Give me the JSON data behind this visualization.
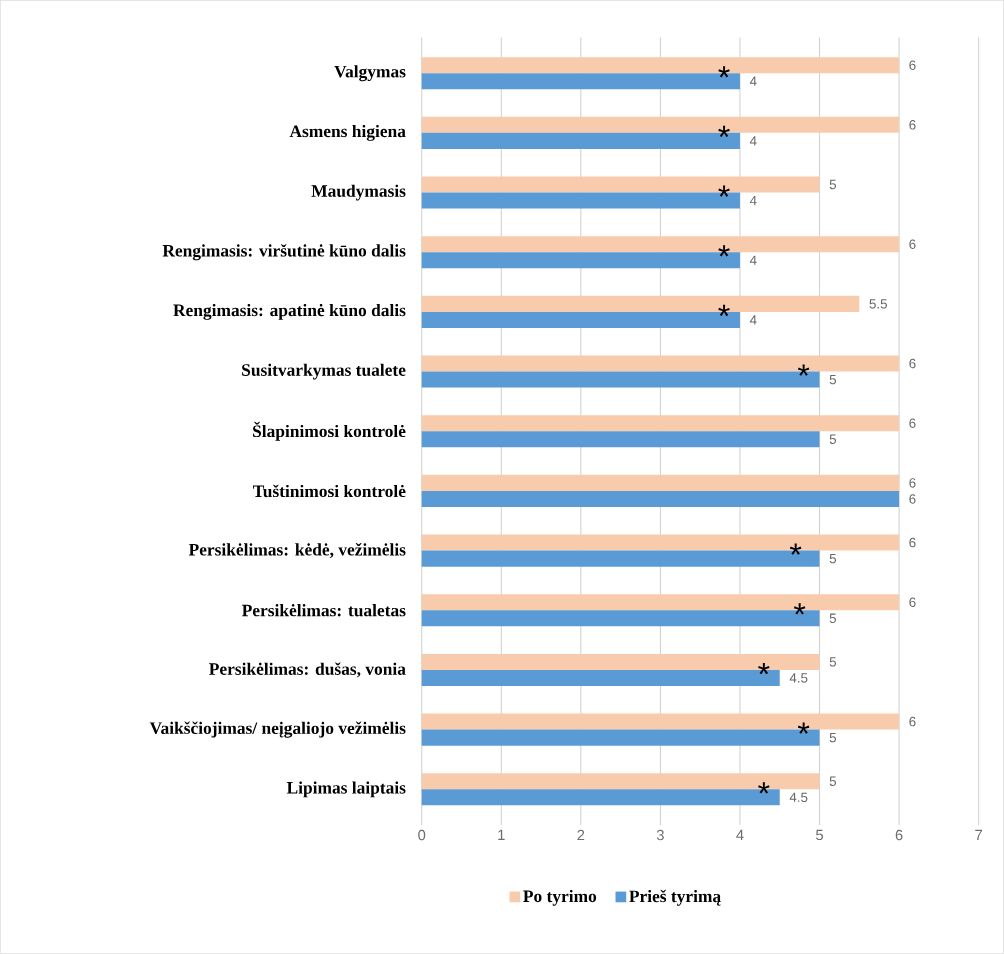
{
  "chart_data": {
    "type": "bar",
    "orientation": "horizontal",
    "categories": [
      "Valgymas",
      "Asmens higiena",
      "Maudymasis",
      "Rengimasis: viršutinė kūno dalis",
      "Rengimasis: apatinė kūno dalis",
      "Susitvarkymas tualete",
      "Šlapinimosi kontrolė",
      "Tuštinimosi kontrolė",
      "Persikėlimas: kėdė, vežimėlis",
      "Persikėlimas: tualetas",
      "Persikėlimas: dušas, vonia",
      "Vaikščiojimas/ neįgaliojo vežimėlis",
      "Lipimas laiptais"
    ],
    "series": [
      {
        "name": "Po tyrimo",
        "color": "#f8cbad",
        "values": [
          6,
          6,
          5,
          6,
          5.5,
          6,
          6,
          6,
          6,
          6,
          5,
          6,
          5
        ]
      },
      {
        "name": "Prieš tyrimą",
        "color": "#5b9bd5",
        "values": [
          4,
          4,
          4,
          4,
          4,
          5,
          5,
          6,
          5,
          5,
          4.5,
          5,
          4.5
        ]
      }
    ],
    "xlim": [
      0,
      7
    ],
    "xticks": [
      0,
      1,
      2,
      3,
      4,
      5,
      6,
      7
    ],
    "grid": "x",
    "legend": "bottom",
    "data_labels": true,
    "annotations": [
      {
        "text": "*",
        "x": 3.8,
        "y": "Valgymas"
      },
      {
        "text": "*",
        "x": 3.8,
        "y": "Asmens higiena"
      },
      {
        "text": "*",
        "x": 3.8,
        "y": "Maudymasis"
      },
      {
        "text": "*",
        "x": 3.8,
        "y": "Rengimasis: viršutinė kūno dalis"
      },
      {
        "text": "*",
        "x": 3.8,
        "y": "Rengimasis: apatinė kūno dalis"
      },
      {
        "text": "*",
        "x": 4.8,
        "y": "Susitvarkymas tualete"
      },
      {
        "text": "*",
        "x": 4.7,
        "y": "Persikėlimas: kėdė, vežimėlis"
      },
      {
        "text": "*",
        "x": 4.75,
        "y": "Persikėlimas: tualetas"
      },
      {
        "text": "*",
        "x": 4.3,
        "y": "Persikėlimas: dušas, vonia"
      },
      {
        "text": "*",
        "x": 4.8,
        "y": "Vaikščiojimas/ neįgaliojo vežimėlis"
      },
      {
        "text": "*",
        "x": 4.3,
        "y": "Lipimas laiptais"
      }
    ]
  }
}
